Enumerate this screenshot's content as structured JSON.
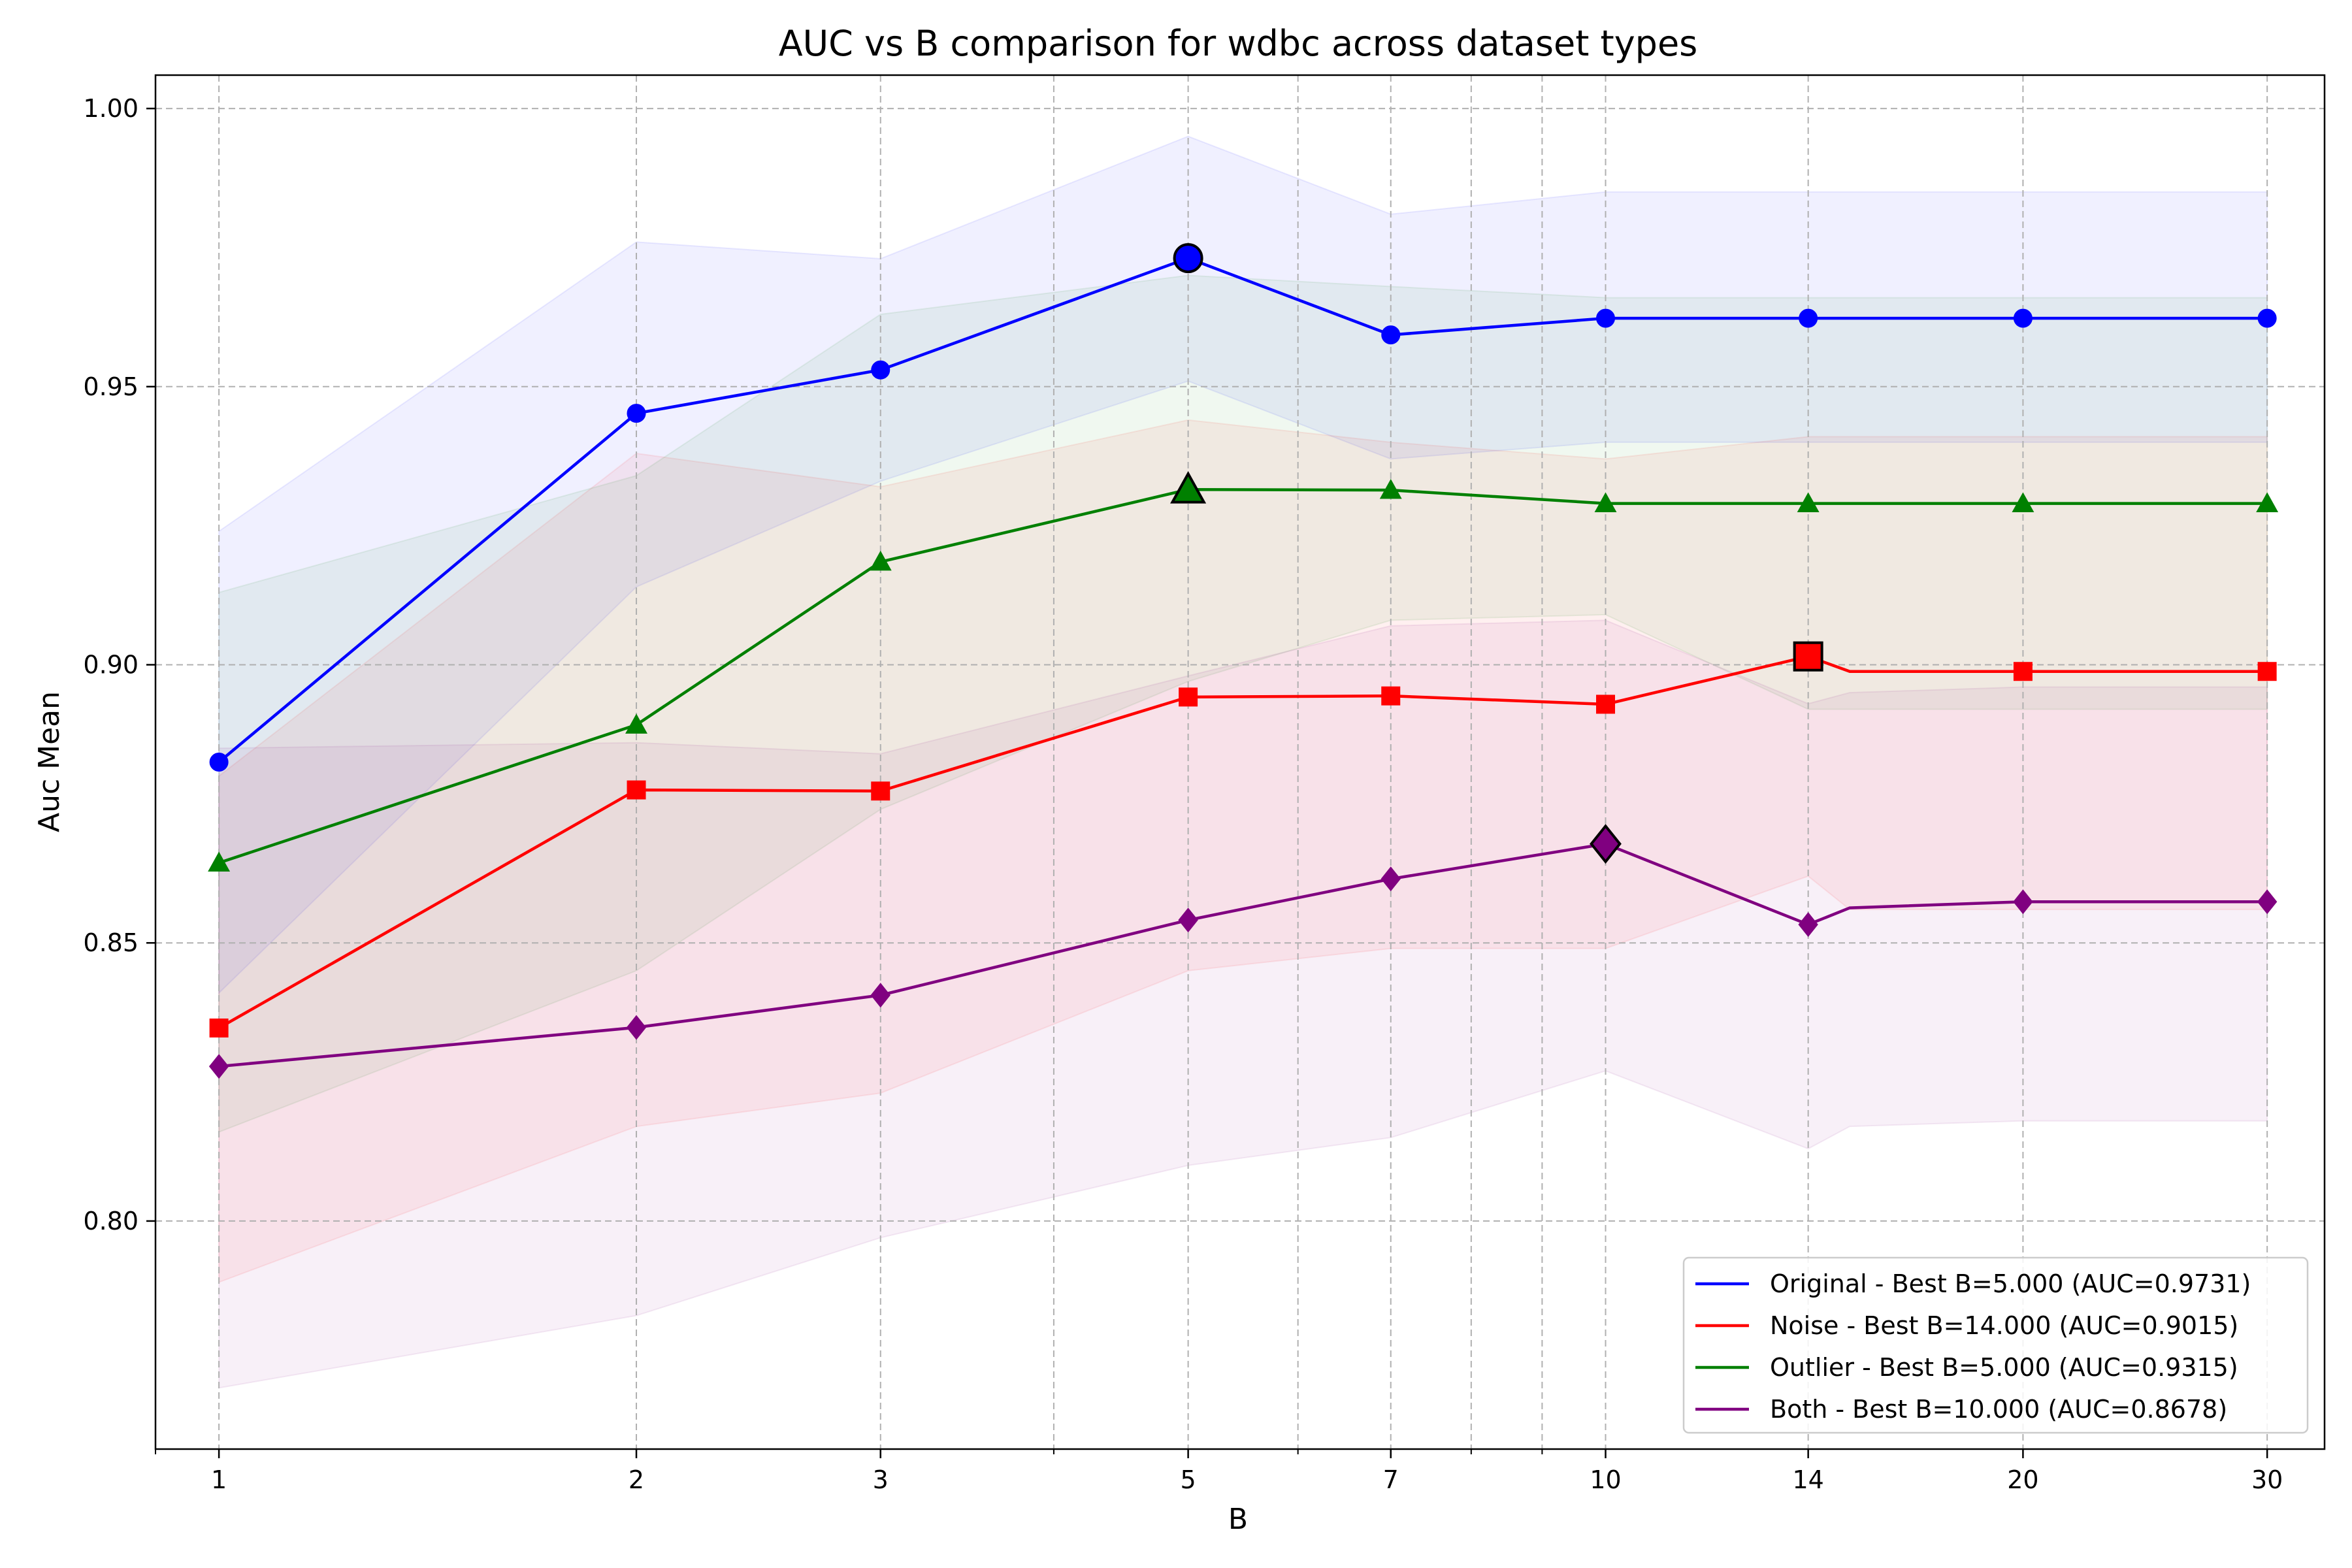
{
  "chart_data": {
    "type": "line",
    "title": "AUC vs B comparison for wdbc across dataset types",
    "xlabel": "B",
    "ylabel": "Auc Mean",
    "x_scale": "log",
    "xlim": [
      0.9,
      33
    ],
    "ylim": [
      0.759,
      1.006
    ],
    "grid": true,
    "legend_position": "bottom-right",
    "x_ticks": [
      1,
      2,
      3,
      5,
      7,
      10,
      14,
      20,
      30
    ],
    "x_tick_labels": [
      "1",
      "2",
      "3",
      "5",
      "7",
      "10",
      "14",
      "20",
      "30"
    ],
    "y_ticks": [
      0.8,
      0.85,
      0.9,
      0.95,
      1.0
    ],
    "y_tick_labels": [
      "0.80",
      "0.85",
      "0.90",
      "0.95",
      "1.00"
    ],
    "series": [
      {
        "name": "Original - Best B=5.000 (AUC=0.9731)",
        "color": "#0000ff",
        "marker": "circle",
        "x": [
          1,
          2,
          3,
          5,
          7,
          10,
          14,
          20,
          30
        ],
        "y": [
          0.8825,
          0.9452,
          0.953,
          0.9731,
          0.9593,
          0.9623,
          0.9623,
          0.9623,
          0.9623
        ],
        "lower": [
          0.841,
          0.914,
          0.933,
          0.951,
          0.937,
          0.94,
          0.94,
          0.94,
          0.94
        ],
        "upper": [
          0.924,
          0.976,
          0.973,
          0.995,
          0.981,
          0.985,
          0.985,
          0.985,
          0.985
        ],
        "best": {
          "x": 5,
          "y": 0.9731
        }
      },
      {
        "name": "Noise - Best B=14.000 (AUC=0.9015)",
        "color": "#ff0000",
        "marker": "square",
        "x": [
          1,
          2,
          3,
          5,
          7,
          10,
          14,
          15,
          20,
          30
        ],
        "y": [
          0.8347,
          0.8775,
          0.8773,
          0.8942,
          0.8944,
          0.8929,
          0.9015,
          0.8988,
          0.8988,
          0.8988
        ],
        "lower": [
          0.789,
          0.817,
          0.823,
          0.845,
          0.849,
          0.849,
          0.862,
          0.856,
          0.856,
          0.856
        ],
        "upper": [
          0.88,
          0.938,
          0.932,
          0.944,
          0.94,
          0.937,
          0.941,
          0.941,
          0.941,
          0.941
        ],
        "best": {
          "x": 14,
          "y": 0.9015
        }
      },
      {
        "name": "Outlier - Best B=5.000 (AUC=0.9315)",
        "color": "#008000",
        "marker": "triangle",
        "x": [
          1,
          2,
          3,
          5,
          7,
          10,
          14,
          20,
          30
        ],
        "y": [
          0.8644,
          0.8892,
          0.9185,
          0.9315,
          0.9314,
          0.929,
          0.929,
          0.929,
          0.929
        ],
        "lower": [
          0.816,
          0.845,
          0.874,
          0.897,
          0.908,
          0.909,
          0.892,
          0.892,
          0.892
        ],
        "upper": [
          0.913,
          0.934,
          0.963,
          0.97,
          0.968,
          0.966,
          0.966,
          0.966,
          0.966
        ],
        "best": {
          "x": 5,
          "y": 0.9315
        }
      },
      {
        "name": "Both - Best B=10.000 (AUC=0.8678)",
        "color": "#800080",
        "marker": "diamond",
        "x": [
          1,
          2,
          3,
          5,
          7,
          10,
          14,
          15,
          20,
          30
        ],
        "y": [
          0.8278,
          0.8348,
          0.8406,
          0.8541,
          0.8615,
          0.8678,
          0.8533,
          0.8563,
          0.8574,
          0.8574
        ],
        "lower": [
          0.77,
          0.783,
          0.797,
          0.81,
          0.815,
          0.827,
          0.813,
          0.817,
          0.818,
          0.818
        ],
        "upper": [
          0.885,
          0.886,
          0.884,
          0.898,
          0.907,
          0.908,
          0.893,
          0.895,
          0.896,
          0.896
        ],
        "best": {
          "x": 10,
          "y": 0.8678
        }
      }
    ]
  }
}
